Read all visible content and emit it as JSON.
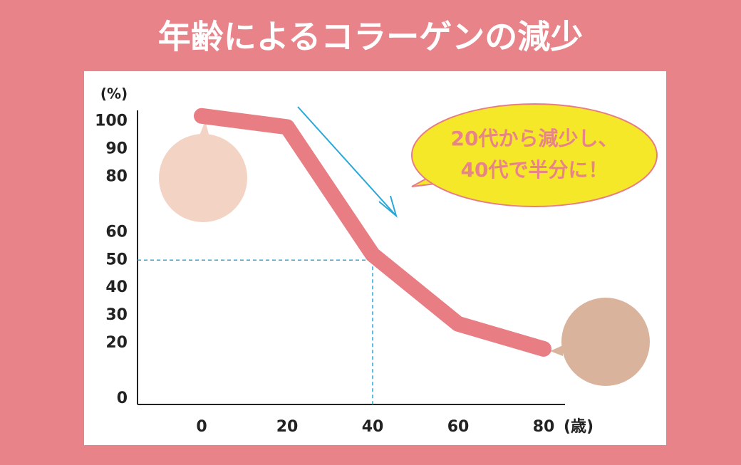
{
  "chart_data": {
    "type": "line",
    "title": "年齢によるコラーゲンの減少",
    "y_label": "(%)",
    "x_label": "(歳)",
    "x": [
      0,
      20,
      40,
      60,
      80
    ],
    "xlim": [
      -15,
      85
    ],
    "xticks": [
      0,
      20,
      40,
      60,
      80
    ],
    "ylim": [
      0,
      104
    ],
    "yticks": [
      0,
      20,
      30,
      40,
      50,
      60,
      80,
      90,
      100
    ],
    "series": [
      {
        "color": "#e87d84",
        "values": [
          102,
          98,
          52,
          27,
          18
        ]
      }
    ],
    "highlight": {
      "x": 40,
      "y": 50,
      "color": "#29a8d8"
    },
    "annotation": [
      "20代から減少し、",
      "40代で半分に！"
    ]
  }
}
